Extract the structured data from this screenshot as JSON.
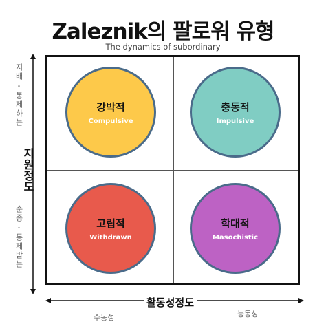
{
  "title": "Zaleznik의 팔로워 유형",
  "subtitle": "The dynamics of subordinary",
  "quadrants": [
    {
      "ko": "강박적",
      "en": "Compulsive",
      "color": "#fdc94a"
    },
    {
      "ko": "충동적",
      "en": "Impulsive",
      "color": "#80cdc3"
    },
    {
      "ko": "고립적",
      "en": "Withdrawn",
      "color": "#e85a4c"
    },
    {
      "ko": "학대적",
      "en": "Masochistic",
      "color": "#bd62c4"
    }
  ],
  "y_axis": {
    "label": "지원정도",
    "top": "지배-통제하는",
    "bottom": "순종-통제받는"
  },
  "x_axis": {
    "label": "활동성정도",
    "left": "수동성",
    "right": "능동성"
  }
}
